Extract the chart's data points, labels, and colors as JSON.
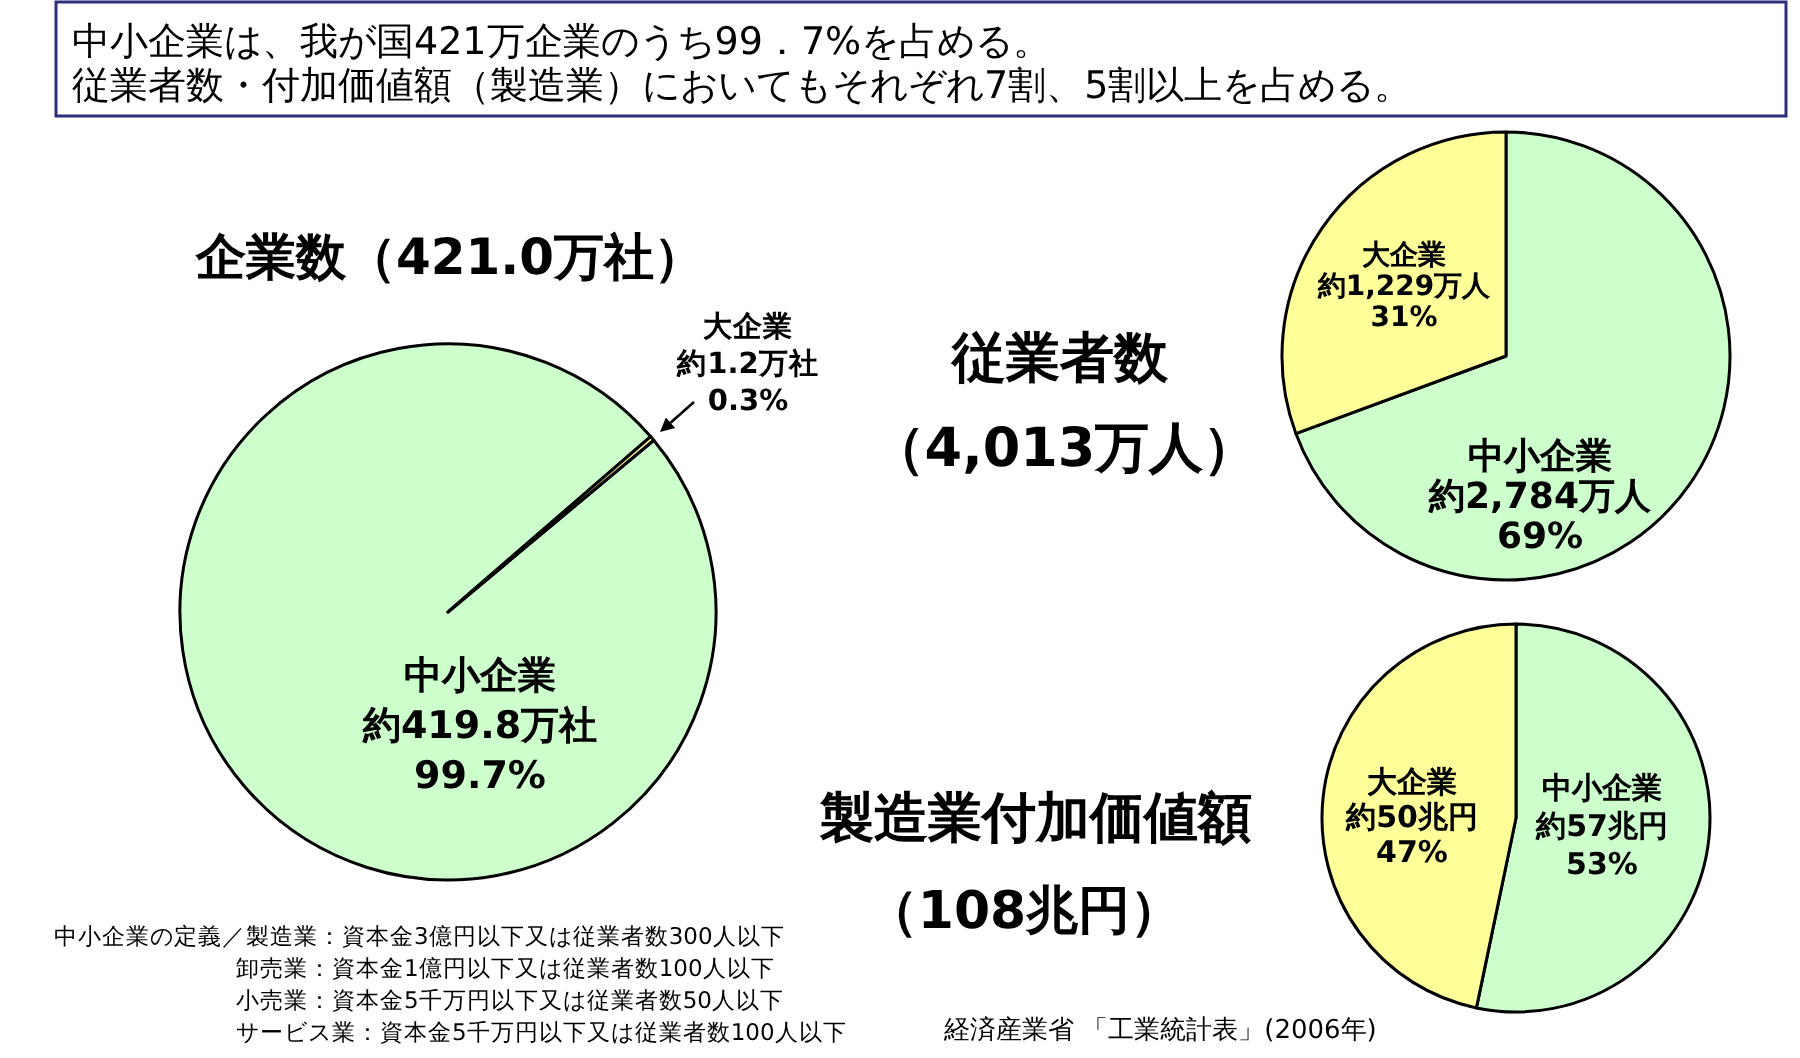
{
  "chart_data": [
    {
      "type": "other",
      "annotations": [
        "中小企業は、我が国421万企業のうち99．7%を占める。",
        "従業者数・付加価値額（製造業）においてもそれぞれ7割、5割以上を占める。"
      ]
    },
    {
      "type": "pie",
      "title": "企業数（421.0万社）",
      "categories": [
        "中小企業",
        "大企業"
      ],
      "values": [
        419.8,
        1.2
      ],
      "colors": [
        "#ccffcc",
        "#ffff99"
      ],
      "value_labels": [
        "約419.8万社\n99.7%",
        "約1.2万社\n0.3%"
      ],
      "annotations": [
        "中小企業の定義／製造業：資本金3億円以下又は従業者数300人以下",
        "卸売業：資本金1億円以下又は従業者数100人以下",
        "小売業：資本金5千万円以下又は従業者数50人以下",
        "サービス業：資本金5千万円以下又は従業者数100人以下"
      ]
    },
    {
      "type": "pie",
      "title": "従業者数",
      "subtitle": "（4,013万人）",
      "categories": [
        "中小企業",
        "大企業"
      ],
      "values": [
        2784,
        1229
      ],
      "colors": [
        "#ccffcc",
        "#ffff99"
      ],
      "value_labels": [
        "約2,784万人\n69%",
        "約1,229万人\n31%"
      ]
    },
    {
      "type": "pie",
      "title": "製造業付加価値額",
      "subtitle": "（108兆円）",
      "categories": [
        "中小企業",
        "大企業"
      ],
      "values": [
        57,
        50
      ],
      "colors": [
        "#ccffcc",
        "#ffff99"
      ],
      "value_labels": [
        "約57兆円\n53%",
        "約50兆円\n47%"
      ],
      "annotations": [
        "経済産業省 「工業統計表」(2006年)"
      ]
    }
  ]
}
